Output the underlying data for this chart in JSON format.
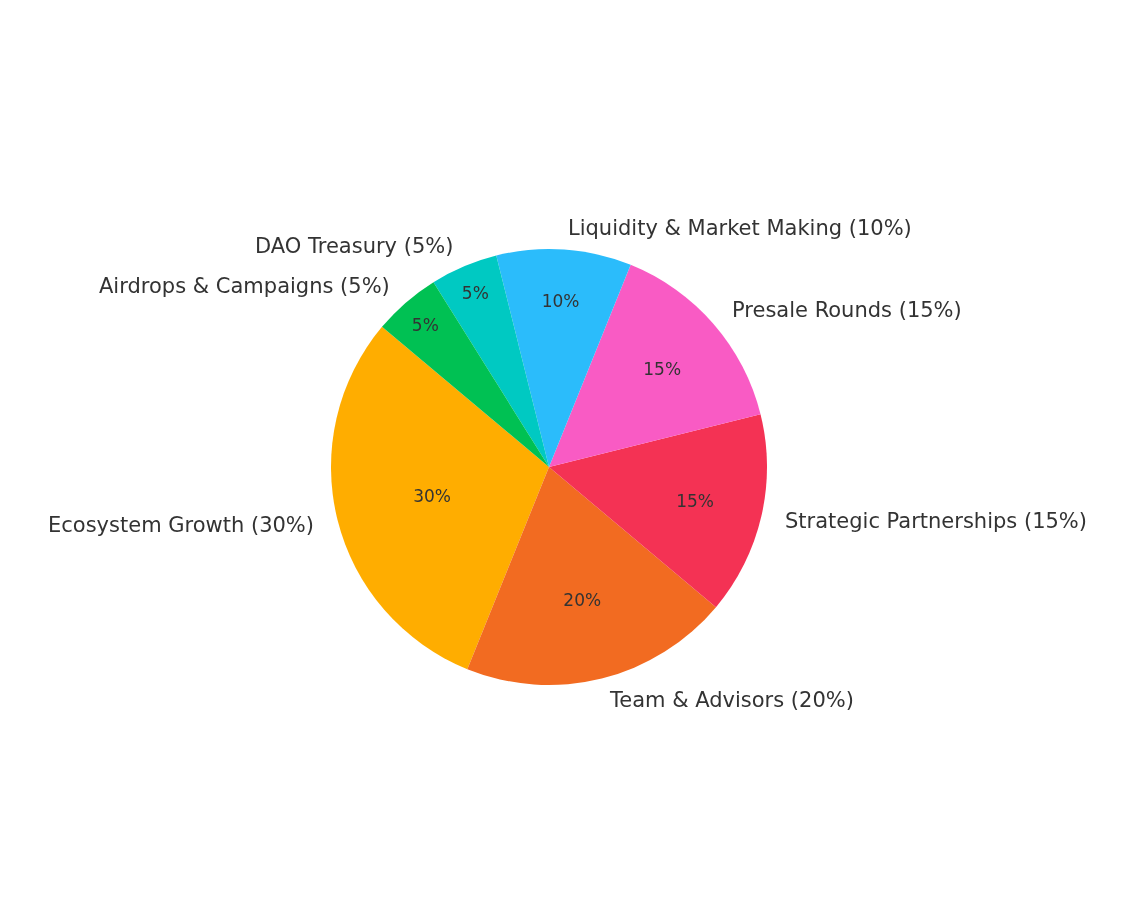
{
  "chart_data": {
    "type": "pie",
    "categories": [
      "Ecosystem Growth (30%)",
      "Team & Advisors (20%)",
      "Strategic Partnerships (15%)",
      "Presale Rounds (15%)",
      "Liquidity & Market Making (10%)",
      "DAO Treasury (5%)",
      "Airdrops & Campaigns (5%)"
    ],
    "values": [
      30,
      20,
      15,
      15,
      10,
      5,
      5
    ],
    "value_labels": [
      "30%",
      "20%",
      "15%",
      "15%",
      "10%",
      "5%",
      "5%"
    ],
    "colors": [
      "#ffad00",
      "#f26b21",
      "#f43254",
      "#f95bc4",
      "#2bbcfb",
      "#00c9c2",
      "#00c153"
    ],
    "legend": false
  }
}
